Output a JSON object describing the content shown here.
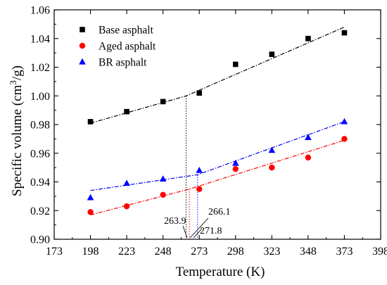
{
  "chart_data": {
    "type": "scatter",
    "xlabel": "Temperature (K)",
    "ylabel_main": "Specific volume (cm",
    "ylabel_sup": "3",
    "ylabel_end": "/g)",
    "xlim": [
      173,
      398
    ],
    "ylim": [
      0.9,
      1.06
    ],
    "xticks": [
      173,
      198,
      223,
      248,
      273,
      298,
      323,
      348,
      373,
      398
    ],
    "yticks": [
      0.9,
      0.92,
      0.94,
      0.96,
      0.98,
      1.0,
      1.02,
      1.04,
      1.06
    ],
    "xtick_labels": [
      "173",
      "198",
      "223",
      "248",
      "273",
      "298",
      "323",
      "348",
      "373",
      "398"
    ],
    "ytick_labels": [
      "0.90",
      "0.92",
      "0.94",
      "0.96",
      "0.98",
      "1.00",
      "1.02",
      "1.04",
      "1.06"
    ],
    "legend_position": "top-left",
    "series": [
      {
        "name": "Base asphalt",
        "marker": "square",
        "color": "#000000",
        "x": [
          198,
          223,
          248,
          273,
          298,
          323,
          348,
          373
        ],
        "y": [
          0.982,
          0.989,
          0.996,
          1.002,
          1.022,
          1.029,
          1.04,
          1.044
        ],
        "fit": [
          [
            198,
            0.981
          ],
          [
            263.9,
            1.0
          ],
          [
            373,
            1.048
          ]
        ],
        "transition": 263.9
      },
      {
        "name": "Aged asphalt",
        "marker": "circle",
        "color": "#ff0000",
        "x": [
          198,
          223,
          248,
          273,
          298,
          323,
          348,
          373
        ],
        "y": [
          0.919,
          0.923,
          0.931,
          0.935,
          0.949,
          0.95,
          0.957,
          0.97
        ],
        "fit": [
          [
            198,
            0.917
          ],
          [
            266.1,
            0.935
          ],
          [
            373,
            0.969
          ]
        ],
        "transition": 266.1
      },
      {
        "name": "BR asphalt",
        "marker": "triangle",
        "color": "#0000ff",
        "x": [
          198,
          223,
          248,
          273,
          298,
          323,
          348,
          373
        ],
        "y": [
          0.929,
          0.939,
          0.942,
          0.948,
          0.953,
          0.962,
          0.971,
          0.982
        ],
        "fit": [
          [
            198,
            0.934
          ],
          [
            271.8,
            0.945
          ],
          [
            373,
            0.982
          ]
        ],
        "transition": 271.8
      }
    ],
    "annotations": [
      {
        "text": "263.9",
        "series": 0
      },
      {
        "text": "266.1",
        "series": 1
      },
      {
        "text": "271.8",
        "series": 2
      }
    ]
  }
}
